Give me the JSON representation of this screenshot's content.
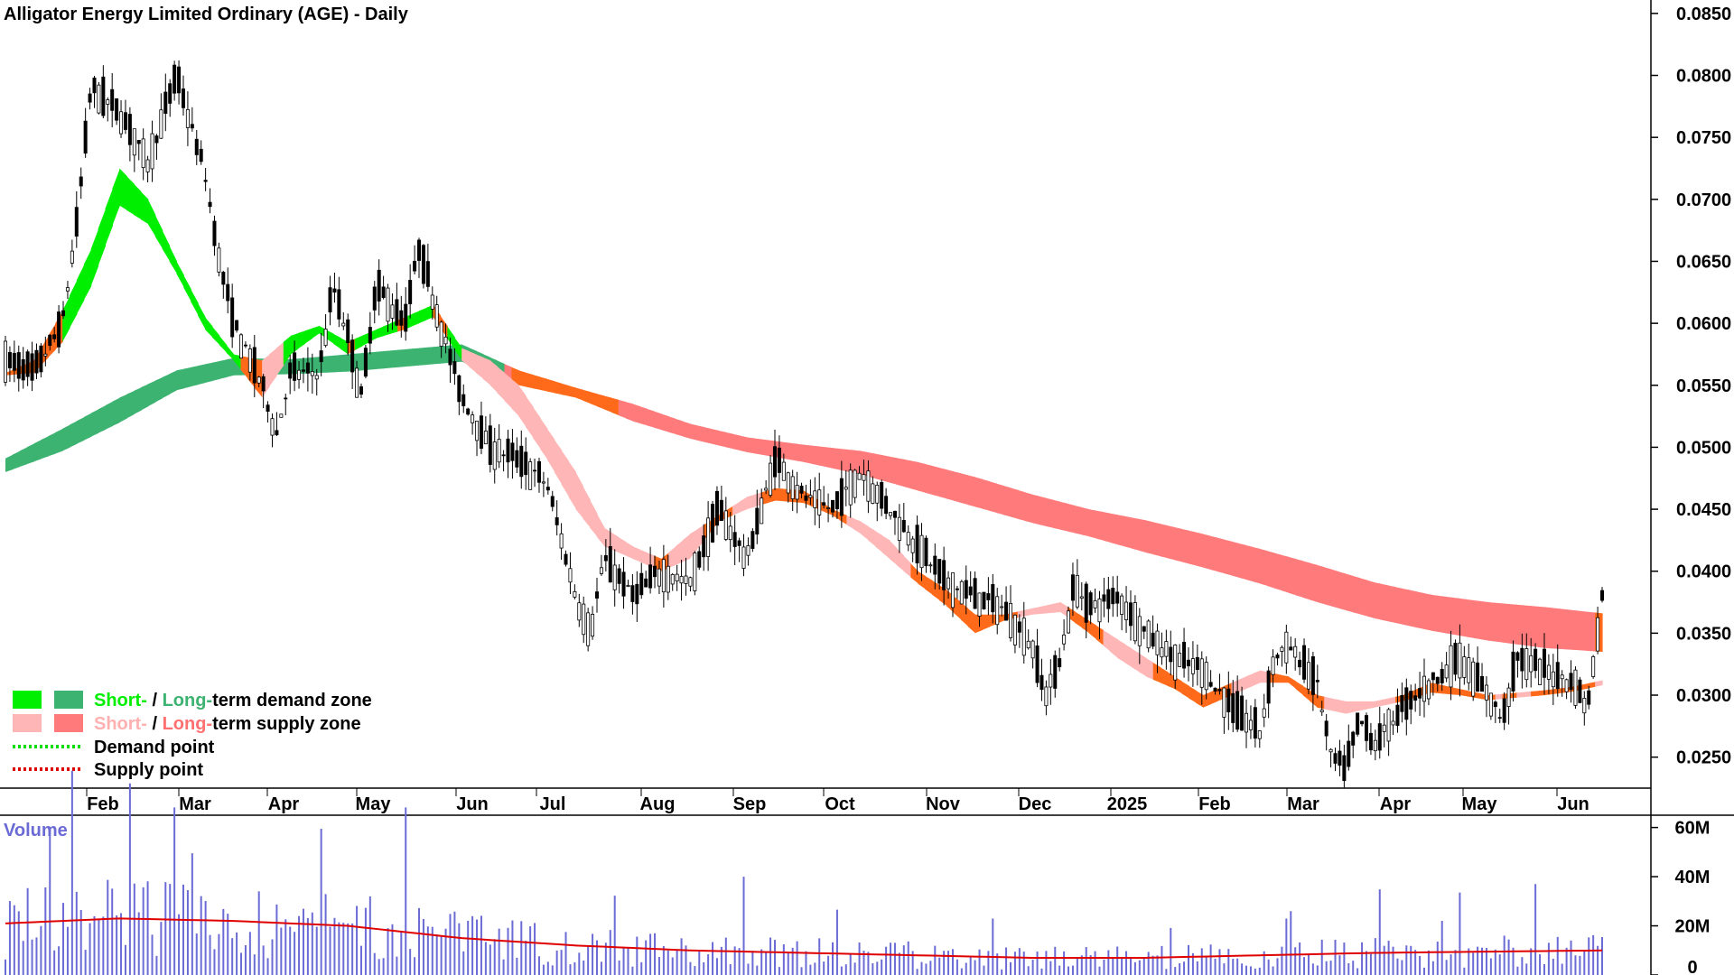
{
  "chart_data": [
    {
      "type": "candlestick",
      "title": "Alligator Energy Limited Ordinary (AGE) - Daily",
      "ylim": [
        0.0225,
        0.0855
      ],
      "y_ticks": [
        "0.0850",
        "0.0800",
        "0.0750",
        "0.0700",
        "0.0650",
        "0.0600",
        "0.0550",
        "0.0500",
        "0.0450",
        "0.0400",
        "0.0350",
        "0.0300",
        "0.0250"
      ],
      "x_months": [
        "Feb",
        "Mar",
        "Apr",
        "May",
        "Jun",
        "Jul",
        "Aug",
        "Sep",
        "Oct",
        "Nov",
        "Dec",
        "2025",
        "Feb",
        "Mar",
        "Apr",
        "May",
        "Jun"
      ],
      "close_path": [
        [
          0.0,
          0.057
        ],
        [
          1.0,
          0.056
        ],
        [
          2.0,
          0.06
        ],
        [
          2.5,
          0.068
        ],
        [
          3.0,
          0.079
        ],
        [
          4.0,
          0.077
        ],
        [
          5.0,
          0.073
        ],
        [
          6.0,
          0.08
        ],
        [
          7.0,
          0.072
        ],
        [
          7.5,
          0.065
        ],
        [
          8.0,
          0.06
        ],
        [
          9.0,
          0.055
        ],
        [
          9.5,
          0.051
        ],
        [
          10.0,
          0.056
        ],
        [
          11.0,
          0.056
        ],
        [
          11.5,
          0.063
        ],
        [
          12.0,
          0.059
        ],
        [
          12.5,
          0.054
        ],
        [
          13.0,
          0.063
        ],
        [
          14.0,
          0.06
        ],
        [
          14.5,
          0.066
        ],
        [
          15.0,
          0.062
        ],
        [
          15.5,
          0.058
        ],
        [
          16.0,
          0.054
        ],
        [
          17.0,
          0.05
        ],
        [
          18.0,
          0.049
        ],
        [
          19.0,
          0.047
        ],
        [
          20.0,
          0.038
        ],
        [
          20.5,
          0.035
        ],
        [
          21.0,
          0.041
        ],
        [
          22.0,
          0.038
        ],
        [
          23.0,
          0.04
        ],
        [
          24.0,
          0.039
        ],
        [
          25.0,
          0.045
        ],
        [
          26.0,
          0.041
        ],
        [
          27.0,
          0.049
        ],
        [
          28.0,
          0.046
        ],
        [
          29.0,
          0.045
        ],
        [
          30.0,
          0.048
        ],
        [
          31.0,
          0.045
        ],
        [
          32.0,
          0.042
        ],
        [
          33.0,
          0.039
        ],
        [
          34.0,
          0.038
        ],
        [
          35.0,
          0.037
        ],
        [
          36.0,
          0.034
        ],
        [
          36.5,
          0.03
        ],
        [
          37.0,
          0.033
        ],
        [
          37.5,
          0.039
        ],
        [
          38.0,
          0.037
        ],
        [
          39.0,
          0.038
        ],
        [
          40.0,
          0.035
        ],
        [
          41.0,
          0.033
        ],
        [
          42.0,
          0.032
        ],
        [
          43.0,
          0.029
        ],
        [
          44.0,
          0.027
        ],
        [
          44.5,
          0.033
        ],
        [
          45.0,
          0.034
        ],
        [
          46.0,
          0.031
        ],
        [
          46.5,
          0.025
        ],
        [
          47.0,
          0.024
        ],
        [
          47.5,
          0.028
        ],
        [
          48.0,
          0.026
        ],
        [
          49.0,
          0.029
        ],
        [
          50.0,
          0.031
        ],
        [
          51.0,
          0.033
        ],
        [
          52.0,
          0.03
        ],
        [
          52.5,
          0.028
        ],
        [
          53.0,
          0.033
        ],
        [
          54.0,
          0.032
        ],
        [
          55.0,
          0.031
        ],
        [
          55.5,
          0.029
        ],
        [
          56.0,
          0.038
        ]
      ],
      "long_band": [
        [
          0.0,
          0.0491,
          0.048
        ],
        [
          2.0,
          0.0515,
          0.0497
        ],
        [
          4.0,
          0.054,
          0.052
        ],
        [
          6.0,
          0.0562,
          0.0546
        ],
        [
          8.0,
          0.0572,
          0.0558
        ],
        [
          10.0,
          0.0571,
          0.0559
        ],
        [
          12.0,
          0.0575,
          0.0561
        ],
        [
          14.0,
          0.0579,
          0.0565
        ],
        [
          16.0,
          0.0583,
          0.0569
        ],
        [
          18.0,
          0.0562,
          0.055
        ],
        [
          20.0,
          0.0548,
          0.054
        ],
        [
          22.0,
          0.0535,
          0.0521
        ],
        [
          24.0,
          0.0519,
          0.0507
        ],
        [
          26.0,
          0.0508,
          0.0496
        ],
        [
          28.0,
          0.0502,
          0.0488
        ],
        [
          30.0,
          0.0497,
          0.0478
        ],
        [
          32.0,
          0.0488,
          0.0465
        ],
        [
          34.0,
          0.0476,
          0.0452
        ],
        [
          36.0,
          0.0462,
          0.0439
        ],
        [
          38.0,
          0.045,
          0.0428
        ],
        [
          40.0,
          0.0441,
          0.0415
        ],
        [
          42.0,
          0.043,
          0.0403
        ],
        [
          44.0,
          0.0418,
          0.039
        ],
        [
          46.0,
          0.0405,
          0.0375
        ],
        [
          48.0,
          0.0391,
          0.0362
        ],
        [
          50.0,
          0.0381,
          0.0352
        ],
        [
          52.0,
          0.0375,
          0.0344
        ],
        [
          54.0,
          0.0371,
          0.0338
        ],
        [
          56.0,
          0.0366,
          0.0335
        ]
      ],
      "short_band": [
        [
          0.0,
          0.056,
          0.0558
        ],
        [
          1.0,
          0.057,
          0.056
        ],
        [
          2.0,
          0.061,
          0.0585
        ],
        [
          3.0,
          0.066,
          0.063
        ],
        [
          4.0,
          0.0725,
          0.0695
        ],
        [
          5.0,
          0.07,
          0.068
        ],
        [
          6.0,
          0.065,
          0.064
        ],
        [
          7.0,
          0.0605,
          0.0595
        ],
        [
          8.0,
          0.0575,
          0.057
        ],
        [
          9.0,
          0.057,
          0.054
        ],
        [
          10.0,
          0.059,
          0.0575
        ],
        [
          11.0,
          0.0598,
          0.0592
        ],
        [
          12.0,
          0.0585,
          0.0575
        ],
        [
          13.0,
          0.0595,
          0.0588
        ],
        [
          14.0,
          0.0605,
          0.0595
        ],
        [
          15.0,
          0.0615,
          0.0605
        ],
        [
          16.0,
          0.058,
          0.057
        ],
        [
          17.0,
          0.057,
          0.055
        ],
        [
          18.0,
          0.055,
          0.0525
        ],
        [
          19.0,
          0.0515,
          0.049
        ],
        [
          20.0,
          0.048,
          0.045
        ],
        [
          21.0,
          0.0435,
          0.042
        ],
        [
          22.0,
          0.042,
          0.041
        ],
        [
          23.0,
          0.041,
          0.04
        ],
        [
          24.0,
          0.043,
          0.041
        ],
        [
          25.0,
          0.0445,
          0.044
        ],
        [
          26.0,
          0.046,
          0.045
        ],
        [
          27.0,
          0.0467,
          0.0457
        ],
        [
          28.0,
          0.0465,
          0.0455
        ],
        [
          29.0,
          0.045,
          0.0445
        ],
        [
          30.0,
          0.044,
          0.043
        ],
        [
          31.0,
          0.0425,
          0.041
        ],
        [
          32.0,
          0.04,
          0.039
        ],
        [
          33.0,
          0.0385,
          0.0372
        ],
        [
          34.0,
          0.0365,
          0.035
        ],
        [
          35.0,
          0.0365,
          0.036
        ],
        [
          36.0,
          0.037,
          0.0365
        ],
        [
          37.0,
          0.0375,
          0.0367
        ],
        [
          38.0,
          0.036,
          0.035
        ],
        [
          39.0,
          0.0345,
          0.033
        ],
        [
          40.0,
          0.033,
          0.0315
        ],
        [
          41.0,
          0.0315,
          0.0305
        ],
        [
          42.0,
          0.03,
          0.029
        ],
        [
          43.0,
          0.031,
          0.03
        ],
        [
          44.0,
          0.032,
          0.031
        ],
        [
          45.0,
          0.0315,
          0.031
        ],
        [
          46.0,
          0.03,
          0.029
        ],
        [
          47.0,
          0.0295,
          0.0285
        ],
        [
          48.0,
          0.0295,
          0.029
        ],
        [
          49.0,
          0.03,
          0.0295
        ],
        [
          50.0,
          0.031,
          0.0302
        ],
        [
          51.0,
          0.0305,
          0.03
        ],
        [
          52.0,
          0.03,
          0.0296
        ],
        [
          53.0,
          0.0302,
          0.0298
        ],
        [
          54.0,
          0.0304,
          0.03
        ],
        [
          55.0,
          0.0307,
          0.0303
        ],
        [
          56.0,
          0.0312,
          0.0308
        ]
      ],
      "legend": [
        {
          "label_parts": [
            "Short-",
            " / ",
            "Long-",
            "term demand zone"
          ],
          "part_colors": [
            "#00ee00",
            "#000000",
            "#3cb371",
            "#000000"
          ],
          "swatches": [
            "#00ee00",
            "#3cb371"
          ]
        },
        {
          "label_parts": [
            "Short-",
            " / ",
            "Long-",
            "term supply zone"
          ],
          "part_colors": [
            "#ffb0b0",
            "#000000",
            "#ff7070",
            "#000000"
          ],
          "swatches": [
            "#ffb6b6",
            "#ff7b7b"
          ]
        },
        {
          "label": "Demand point",
          "dotted": "#00dd00"
        },
        {
          "label": "Supply point",
          "dotted": "#dd0000"
        }
      ],
      "colors": {
        "short_demand": "#00ee00",
        "long_demand": "#3cb371",
        "short_supply": "#ffb6b6",
        "long_supply": "#ff7b7b",
        "transition": "#ff6a1a"
      }
    },
    {
      "type": "bar",
      "title": "Volume",
      "ylim": [
        0,
        65000000
      ],
      "y_ticks": [
        "60M",
        "40M",
        "20M",
        "0"
      ],
      "average_line_color": "#e00000",
      "bar_color": "#6b6bd6",
      "average_path": [
        [
          0,
          21000000
        ],
        [
          4,
          23000000
        ],
        [
          8,
          22000000
        ],
        [
          12,
          20000000
        ],
        [
          16,
          15000000
        ],
        [
          20,
          12000000
        ],
        [
          24,
          10000000
        ],
        [
          28,
          9000000
        ],
        [
          32,
          8000000
        ],
        [
          36,
          7000000
        ],
        [
          40,
          7000000
        ],
        [
          44,
          8000000
        ],
        [
          48,
          9000000
        ],
        [
          52,
          9500000
        ],
        [
          56,
          10000000
        ]
      ]
    }
  ]
}
